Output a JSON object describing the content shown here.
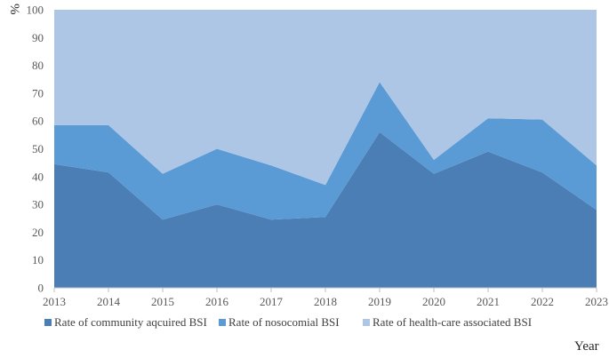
{
  "chart_data": {
    "type": "area",
    "stacked": true,
    "x": [
      "2013",
      "2014",
      "2015",
      "2016",
      "2017",
      "2018",
      "2019",
      "2020",
      "2021",
      "2022",
      "2023"
    ],
    "series": [
      {
        "name": "Rate of community aqcuired BSI",
        "values": [
          44.5,
          41.5,
          24.5,
          30,
          24.5,
          25.5,
          56,
          41,
          49,
          41.5,
          28
        ],
        "color": "#4a7eb4"
      },
      {
        "name": "Rate of nosocomial BSI",
        "values": [
          14,
          17,
          16.5,
          20,
          19.5,
          11.5,
          18,
          5,
          12,
          19,
          16
        ],
        "color": "#5b9bd5"
      },
      {
        "name": "Rate of health-care associated BSI",
        "values": [
          41.5,
          41.5,
          59,
          50,
          56,
          63,
          26,
          54,
          39,
          39.5,
          56
        ],
        "color": "#adc6e5"
      }
    ],
    "ylim": [
      0,
      100
    ],
    "yticks": [
      0,
      10,
      20,
      30,
      40,
      50,
      60,
      70,
      80,
      90,
      100
    ],
    "xlabel": "Year",
    "ylabel": "%",
    "grid": false,
    "legend_position": "bottom"
  }
}
